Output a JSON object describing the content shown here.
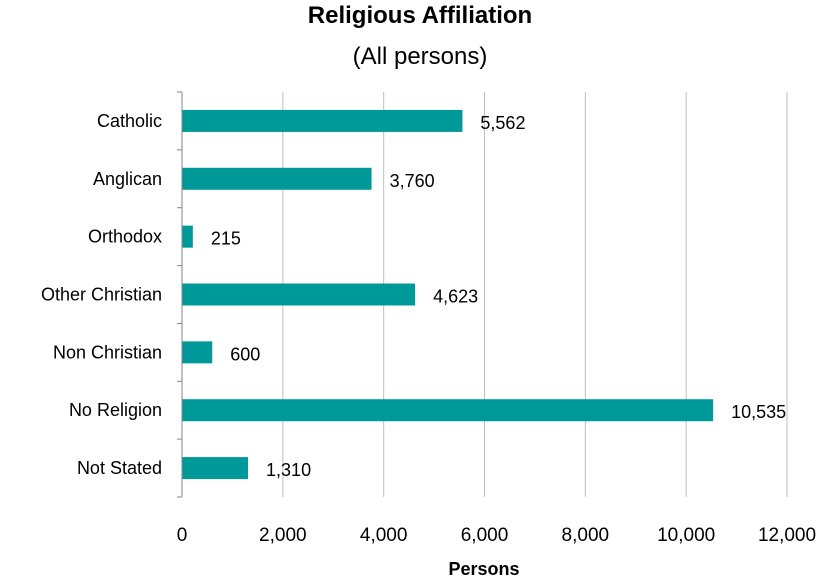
{
  "chart_data": {
    "type": "bar",
    "orientation": "horizontal",
    "title": "Religious Affiliation",
    "subtitle": "(All persons)",
    "xlabel": "Persons",
    "ylabel": "",
    "categories": [
      "Catholic",
      "Anglican",
      "Orthodox",
      "Other Christian",
      "Non Christian",
      "No Religion",
      "Not Stated"
    ],
    "values": [
      5562,
      3760,
      215,
      4623,
      600,
      10535,
      1310
    ],
    "value_labels": [
      "5,562",
      "3,760",
      "215",
      "4,623",
      "600",
      "10,535",
      "1,310"
    ],
    "xlim": [
      0,
      12000
    ],
    "xticks": [
      0,
      2000,
      4000,
      6000,
      8000,
      10000,
      12000
    ],
    "xtick_labels": [
      "0",
      "2,000",
      "4,000",
      "6,000",
      "8,000",
      "10,000",
      "12,000"
    ],
    "grid": "vertical",
    "legend": "none",
    "bar_color": "#009999"
  }
}
